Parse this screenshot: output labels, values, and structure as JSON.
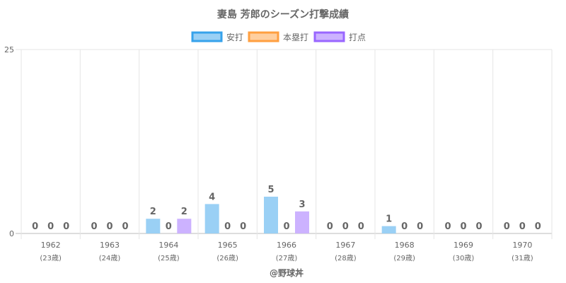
{
  "chart_data": {
    "type": "bar",
    "title": "妻島 芳郎のシーズン打撃成績",
    "categories": [
      "1962",
      "1963",
      "1964",
      "1965",
      "1966",
      "1967",
      "1968",
      "1969",
      "1970"
    ],
    "category_sublabels": [
      "(23歳)",
      "(24歳)",
      "(25歳)",
      "(26歳)",
      "(27歳)",
      "(28歳)",
      "(29歳)",
      "(30歳)",
      "(31歳)"
    ],
    "series": [
      {
        "name": "安打",
        "values": [
          0,
          0,
          2,
          4,
          5,
          0,
          1,
          0,
          0
        ],
        "color": "#9ad0f5",
        "border": "#36a2eb"
      },
      {
        "name": "本塁打",
        "values": [
          0,
          0,
          0,
          0,
          0,
          0,
          0,
          0,
          0
        ],
        "color": "#ffcf9f",
        "border": "#ff9f40"
      },
      {
        "name": "打点",
        "values": [
          0,
          0,
          2,
          0,
          3,
          0,
          0,
          0,
          0
        ],
        "color": "#ccb2ff",
        "border": "#9966ff"
      }
    ],
    "ylim": [
      0,
      25
    ],
    "y_ticks": [
      "0",
      "25"
    ],
    "legend_position": "top",
    "grid": true
  },
  "credit": "@野球丼"
}
